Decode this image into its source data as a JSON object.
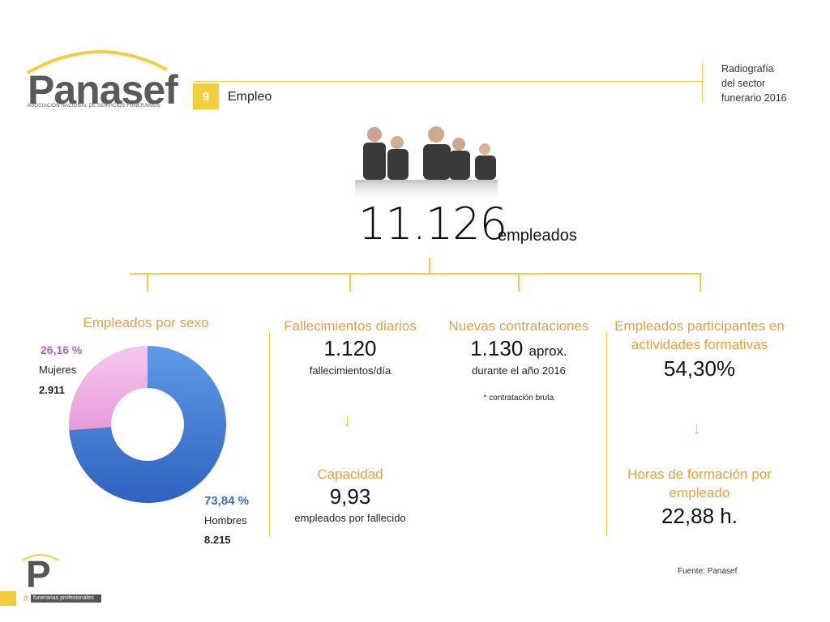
{
  "header": {
    "logo": "Panasef",
    "logo_sub": "ASOCIACIÓN NACIONAL DE SERVICIOS FUNERARIOS",
    "section_number": "9",
    "section_title": "Empleo",
    "report_title": [
      "Radiografía",
      "del sector",
      "funerario 2016"
    ]
  },
  "total": {
    "value": "11.126",
    "label": "empleados"
  },
  "colors": {
    "accent": "#f2cf3a",
    "orange_text": "#e8a13a",
    "women": "#f2aee3",
    "men": "#4a84dc"
  },
  "columns": {
    "sex": {
      "title": "Empleados por sexo",
      "women": {
        "pct": "26,16 %",
        "label": "Mujeres",
        "value": "2.911"
      },
      "men": {
        "pct": "73,84 %",
        "label": "Hombres",
        "value": "8.215"
      }
    },
    "deaths": {
      "title": "Fallecimientos diarios",
      "value": "1.120",
      "sub": "fallecimientos/día",
      "title2": "Capacidad",
      "value2": "9,93",
      "sub2": "empleados por fallecido"
    },
    "hires": {
      "title": "Nuevas contrataciones",
      "value": "1.130",
      "value_suffix": "aprox.",
      "sub": "durante el año 2016",
      "note": "* contratación bruta"
    },
    "training": {
      "title": "Empleados participantes en actividades formativas",
      "value": "54,30%",
      "title2": "Horas de formación por empleado",
      "value2": "22,88 h."
    }
  },
  "source": "Fuente: Panasef",
  "footer": {
    "letter": "P",
    "hash": "#",
    "tag": "funerarias profesionales"
  },
  "chart_data": {
    "type": "pie",
    "title": "Empleados por sexo",
    "donut": true,
    "categories": [
      "Mujeres",
      "Hombres"
    ],
    "values": [
      2911,
      8215
    ],
    "percentages": [
      26.16,
      73.84
    ],
    "colors": [
      "#f2aee3",
      "#4a84dc"
    ]
  }
}
